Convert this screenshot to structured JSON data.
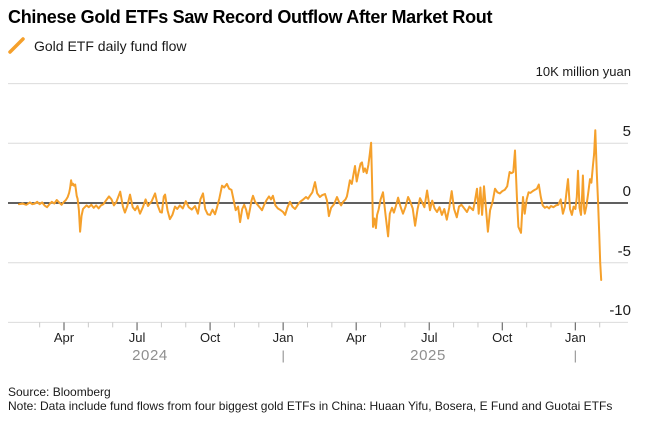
{
  "header": {
    "title": "Chinese Gold ETFs Saw Record Outflow After Market Rout",
    "legend": {
      "label": "Gold ETF daily fund flow"
    }
  },
  "colors": {
    "series_orange": "#F5A02B",
    "gridline": "#DBDBDB",
    "zero_line": "#000000",
    "minor_tick": "#C9C9C9",
    "major_tick": "#6E6E6E",
    "axis_text": "#1f1f1f",
    "year_text": "#8f8f8f"
  },
  "y_axis": {
    "unit_label": "10K million yuan",
    "tick_labels": [
      "5",
      "0",
      "-5",
      "-10"
    ],
    "tick_values": [
      5,
      0,
      -5,
      -10
    ],
    "gridline_values": [
      10,
      5,
      0,
      -5,
      -10
    ],
    "range": [
      -10,
      10
    ]
  },
  "x_axis": {
    "major_ticks": [
      {
        "label": "Apr",
        "t": 2
      },
      {
        "label": "Jul",
        "t": 5
      },
      {
        "label": "Oct",
        "t": 8
      },
      {
        "label": "Jan",
        "t": 11
      },
      {
        "label": "Apr",
        "t": 14
      },
      {
        "label": "Jul",
        "t": 17
      },
      {
        "label": "Oct",
        "t": 20
      },
      {
        "label": "Jan",
        "t": 23
      }
    ],
    "minor_tick_t": [
      1,
      3,
      4,
      6,
      7,
      9,
      10,
      12,
      13,
      15,
      16,
      18,
      19,
      21,
      22,
      24
    ],
    "year_labels": [
      {
        "label": "2024",
        "t": 5.53
      },
      {
        "label": "2025",
        "t": 16.95
      }
    ],
    "year_boundaries": [
      {
        "glyph": "|",
        "t": 11
      },
      {
        "glyph": "|",
        "t": 23
      }
    ]
  },
  "footer": {
    "source": "Source: Bloomberg",
    "note": "Note: Data include fund flows from four biggest gold ETFs in China: Huaan Yifu, Bosera, E Fund and Guotai ETFs"
  },
  "chart_data": {
    "type": "line",
    "title": "Chinese Gold ETFs Saw Record Outflow After Market Rout",
    "ylabel": "10K million yuan",
    "ylim": [
      -10,
      10
    ],
    "grid": "horizontal",
    "legend_position": "top-left",
    "x_encoding": "t = months since 2024-02-01 (t=2 is 2024-04-01, t=23 is 2026-01-01)",
    "series": [
      {
        "name": "Gold ETF daily fund flow",
        "color": "#F5A02B",
        "points": [
          [
            0.15,
            -0.1
          ],
          [
            0.3,
            -0.05
          ],
          [
            0.45,
            -0.15
          ],
          [
            0.6,
            0.05
          ],
          [
            0.7,
            -0.1
          ],
          [
            0.8,
            -0.05
          ],
          [
            0.9,
            0.1
          ],
          [
            1.0,
            -0.1
          ],
          [
            1.1,
            0.05
          ],
          [
            1.2,
            -0.2
          ],
          [
            1.3,
            -0.35
          ],
          [
            1.4,
            -0.1
          ],
          [
            1.5,
            0.1
          ],
          [
            1.6,
            -0.05
          ],
          [
            1.7,
            0.25
          ],
          [
            1.8,
            0.05
          ],
          [
            1.9,
            -0.15
          ],
          [
            2.0,
            0.1
          ],
          [
            2.08,
            0.25
          ],
          [
            2.15,
            0.5
          ],
          [
            2.21,
            0.85
          ],
          [
            2.25,
            1.25
          ],
          [
            2.29,
            1.9
          ],
          [
            2.33,
            1.5
          ],
          [
            2.37,
            1.62
          ],
          [
            2.41,
            1.45
          ],
          [
            2.46,
            1.55
          ],
          [
            2.52,
            0.6
          ],
          [
            2.56,
            0.35
          ],
          [
            2.61,
            -0.6
          ],
          [
            2.66,
            -2.4
          ],
          [
            2.72,
            -1.1
          ],
          [
            2.78,
            -0.5
          ],
          [
            2.85,
            -0.35
          ],
          [
            2.93,
            -0.2
          ],
          [
            3.02,
            -0.35
          ],
          [
            3.12,
            -0.15
          ],
          [
            3.22,
            -0.4
          ],
          [
            3.32,
            -0.2
          ],
          [
            3.42,
            -0.45
          ],
          [
            3.52,
            -0.2
          ],
          [
            3.62,
            -0.1
          ],
          [
            3.72,
            0.2
          ],
          [
            3.85,
            0.55
          ],
          [
            3.95,
            0.3
          ],
          [
            4.05,
            -0.2
          ],
          [
            4.15,
            0.1
          ],
          [
            4.31,
            0.95
          ],
          [
            4.42,
            -0.3
          ],
          [
            4.5,
            -0.8
          ],
          [
            4.6,
            -0.25
          ],
          [
            4.71,
            0.7
          ],
          [
            4.82,
            -0.35
          ],
          [
            4.92,
            -0.6
          ],
          [
            5.02,
            -0.25
          ],
          [
            5.12,
            -0.9
          ],
          [
            5.25,
            -0.3
          ],
          [
            5.35,
            0.3
          ],
          [
            5.45,
            -0.25
          ],
          [
            5.6,
            0.15
          ],
          [
            5.74,
            0.8
          ],
          [
            5.85,
            -0.2
          ],
          [
            5.95,
            -0.75
          ],
          [
            6.02,
            -0.8
          ],
          [
            6.1,
            0.55
          ],
          [
            6.15,
            0.7
          ],
          [
            6.25,
            -0.6
          ],
          [
            6.35,
            -1.35
          ],
          [
            6.45,
            -1.0
          ],
          [
            6.56,
            -0.3
          ],
          [
            6.65,
            -0.5
          ],
          [
            6.76,
            -0.2
          ],
          [
            6.88,
            -0.45
          ],
          [
            7.0,
            0.15
          ],
          [
            7.12,
            -0.35
          ],
          [
            7.25,
            -0.55
          ],
          [
            7.38,
            -0.25
          ],
          [
            7.5,
            -0.9
          ],
          [
            7.6,
            0.3
          ],
          [
            7.71,
            0.8
          ],
          [
            7.8,
            -0.5
          ],
          [
            7.9,
            -0.95
          ],
          [
            8.0,
            -1.0
          ],
          [
            8.1,
            -0.55
          ],
          [
            8.2,
            -0.95
          ],
          [
            8.28,
            -0.4
          ],
          [
            8.38,
            0.4
          ],
          [
            8.49,
            1.45
          ],
          [
            8.58,
            1.3
          ],
          [
            8.69,
            1.6
          ],
          [
            8.78,
            1.2
          ],
          [
            8.88,
            1.1
          ],
          [
            8.94,
            0.5
          ],
          [
            9.05,
            -0.6
          ],
          [
            9.15,
            -0.3
          ],
          [
            9.23,
            -1.6
          ],
          [
            9.32,
            -0.5
          ],
          [
            9.4,
            -0.15
          ],
          [
            9.48,
            -0.55
          ],
          [
            9.56,
            -1.3
          ],
          [
            9.64,
            -0.5
          ],
          [
            9.7,
            0.2
          ],
          [
            9.76,
            0.6
          ],
          [
            9.85,
            0.1
          ],
          [
            9.95,
            -0.15
          ],
          [
            10.05,
            -0.4
          ],
          [
            10.13,
            -0.6
          ],
          [
            10.22,
            -0.15
          ],
          [
            10.32,
            0.25
          ],
          [
            10.42,
            0.55
          ],
          [
            10.5,
            0.3
          ],
          [
            10.58,
            0.6
          ],
          [
            10.68,
            -0.2
          ],
          [
            10.78,
            -0.45
          ],
          [
            10.9,
            -0.6
          ],
          [
            11.0,
            -0.75
          ],
          [
            11.08,
            -1.0
          ],
          [
            11.18,
            -0.35
          ],
          [
            11.28,
            0.1
          ],
          [
            11.38,
            -0.3
          ],
          [
            11.49,
            -0.5
          ],
          [
            11.6,
            -0.15
          ],
          [
            11.69,
            0.1
          ],
          [
            11.8,
            0.25
          ],
          [
            11.94,
            0.5
          ],
          [
            12.02,
            0.35
          ],
          [
            12.1,
            0.6
          ],
          [
            12.2,
            0.9
          ],
          [
            12.31,
            1.75
          ],
          [
            12.4,
            0.8
          ],
          [
            12.51,
            0.5
          ],
          [
            12.6,
            0.65
          ],
          [
            12.72,
            0.75
          ],
          [
            12.8,
            0.2
          ],
          [
            12.88,
            -1.1
          ],
          [
            12.97,
            -0.4
          ],
          [
            13.09,
            -0.1
          ],
          [
            13.21,
            0.5
          ],
          [
            13.3,
            0.05
          ],
          [
            13.38,
            -0.2
          ],
          [
            13.46,
            0.1
          ],
          [
            13.56,
            0.3
          ],
          [
            13.62,
            0.55
          ],
          [
            13.68,
            1.2
          ],
          [
            13.74,
            1.9
          ],
          [
            13.82,
            1.6
          ],
          [
            13.89,
            2.4
          ],
          [
            13.95,
            3.1
          ],
          [
            14.02,
            1.8
          ],
          [
            14.1,
            2.6
          ],
          [
            14.18,
            3.3
          ],
          [
            14.24,
            3.4
          ],
          [
            14.3,
            2.6
          ],
          [
            14.36,
            2.9
          ],
          [
            14.43,
            2.5
          ],
          [
            14.5,
            3.2
          ],
          [
            14.56,
            4.1
          ],
          [
            14.61,
            5.05
          ],
          [
            14.65,
            2.0
          ],
          [
            14.69,
            -2.0
          ],
          [
            14.75,
            -1.3
          ],
          [
            14.81,
            -2.1
          ],
          [
            14.86,
            -1.0
          ],
          [
            14.92,
            -0.55
          ],
          [
            15.0,
            0.3
          ],
          [
            15.1,
            0.9
          ],
          [
            15.2,
            -0.9
          ],
          [
            15.31,
            -2.8
          ],
          [
            15.38,
            -0.9
          ],
          [
            15.47,
            -0.4
          ],
          [
            15.55,
            -0.8
          ],
          [
            15.63,
            -0.25
          ],
          [
            15.72,
            0.45
          ],
          [
            15.82,
            -0.3
          ],
          [
            15.92,
            -0.9
          ],
          [
            16.02,
            -0.35
          ],
          [
            16.13,
            0.5
          ],
          [
            16.22,
            0.1
          ],
          [
            16.32,
            -0.45
          ],
          [
            16.42,
            -1.9
          ],
          [
            16.52,
            -0.5
          ],
          [
            16.62,
            0.4
          ],
          [
            16.7,
            0.1
          ],
          [
            16.8,
            -0.35
          ],
          [
            16.91,
            1.05
          ],
          [
            17.03,
            -0.6
          ],
          [
            17.12,
            0.2
          ],
          [
            17.22,
            -0.45
          ],
          [
            17.32,
            -0.75
          ],
          [
            17.42,
            -0.35
          ],
          [
            17.52,
            -1.0
          ],
          [
            17.62,
            -0.5
          ],
          [
            17.72,
            -1.4
          ],
          [
            17.82,
            -0.4
          ],
          [
            17.92,
            1.0
          ],
          [
            18.02,
            -0.5
          ],
          [
            18.13,
            -1.2
          ],
          [
            18.22,
            -0.3
          ],
          [
            18.32,
            -0.15
          ],
          [
            18.42,
            -0.4
          ],
          [
            18.55,
            -0.75
          ],
          [
            18.65,
            -0.3
          ],
          [
            18.8,
            -0.6
          ],
          [
            18.88,
            0.2
          ],
          [
            18.96,
            1.2
          ],
          [
            19.03,
            -0.9
          ],
          [
            19.1,
            1.3
          ],
          [
            19.17,
            -1.0
          ],
          [
            19.25,
            1.4
          ],
          [
            19.33,
            -0.5
          ],
          [
            19.41,
            -2.4
          ],
          [
            19.5,
            -0.6
          ],
          [
            19.6,
            0.1
          ],
          [
            19.7,
            1.2
          ],
          [
            19.8,
            0.9
          ],
          [
            19.9,
            0.8
          ],
          [
            20.0,
            1.0
          ],
          [
            20.1,
            1.1
          ],
          [
            20.2,
            1.4
          ],
          [
            20.3,
            2.6
          ],
          [
            20.38,
            2.5
          ],
          [
            20.45,
            2.6
          ],
          [
            20.52,
            4.4
          ],
          [
            20.6,
            0.5
          ],
          [
            20.66,
            -2.0
          ],
          [
            20.77,
            -2.5
          ],
          [
            20.85,
            0.5
          ],
          [
            20.92,
            -0.9
          ],
          [
            21.0,
            0.3
          ],
          [
            21.08,
            0.9
          ],
          [
            21.16,
            0.85
          ],
          [
            21.25,
            1.0
          ],
          [
            21.33,
            1.1
          ],
          [
            21.42,
            1.2
          ],
          [
            21.5,
            1.55
          ],
          [
            21.58,
            0.5
          ],
          [
            21.66,
            -0.2
          ],
          [
            21.75,
            -0.4
          ],
          [
            21.83,
            -0.3
          ],
          [
            21.92,
            -0.45
          ],
          [
            22.0,
            -0.25
          ],
          [
            22.1,
            -0.35
          ],
          [
            22.2,
            -0.2
          ],
          [
            22.3,
            -0.15
          ],
          [
            22.4,
            0.3
          ],
          [
            22.49,
            -0.9
          ],
          [
            22.57,
            -0.3
          ],
          [
            22.64,
            1.0
          ],
          [
            22.7,
            2.0
          ],
          [
            22.78,
            -0.5
          ],
          [
            22.86,
            -1.0
          ],
          [
            22.93,
            -0.3
          ],
          [
            23.0,
            -0.5
          ],
          [
            23.06,
            0.5
          ],
          [
            23.11,
            2.7
          ],
          [
            23.17,
            -0.4
          ],
          [
            23.23,
            -1.0
          ],
          [
            23.28,
            0.8
          ],
          [
            23.31,
            2.3
          ],
          [
            23.36,
            -0.5
          ],
          [
            23.39,
            -0.9
          ],
          [
            23.45,
            -0.3
          ],
          [
            23.52,
            0.7
          ],
          [
            23.6,
            2.0
          ],
          [
            23.66,
            1.7
          ],
          [
            23.72,
            3.1
          ],
          [
            23.77,
            4.1
          ],
          [
            23.82,
            6.1
          ],
          [
            23.88,
            2.5
          ],
          [
            23.93,
            0.2
          ],
          [
            23.98,
            -2.5
          ],
          [
            24.02,
            -5.0
          ],
          [
            24.06,
            -6.45
          ]
        ]
      }
    ]
  }
}
